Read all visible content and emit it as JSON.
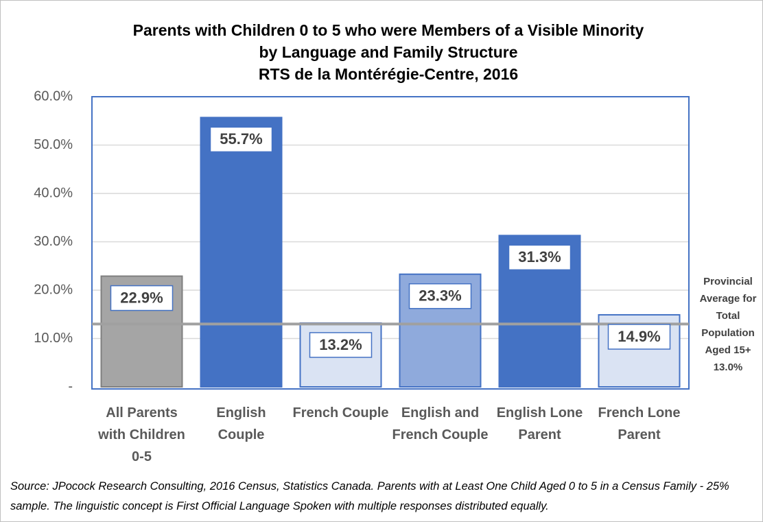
{
  "chart_data": {
    "type": "bar",
    "title": [
      "Parents with Children 0 to 5 who were Members of a Visible Minority",
      "by Language and Family Structure",
      "RTS de la Montérégie-Centre, 2016"
    ],
    "categories": [
      "All Parents with Children 0-5",
      "English Couple",
      "French Couple",
      "English and French Couple",
      "English Lone Parent",
      "French Lone Parent"
    ],
    "values": [
      22.9,
      55.7,
      13.2,
      23.3,
      31.3,
      14.9
    ],
    "value_labels": [
      "22.9%",
      "55.7%",
      "13.2%",
      "23.3%",
      "31.3%",
      "14.9%"
    ],
    "colors": [
      "#a5a5a5",
      "#4472c4",
      "#dae3f3",
      "#8faadc",
      "#4472c4",
      "#dae3f3"
    ],
    "ylim": [
      0,
      60
    ],
    "yticks": [
      {
        "value": 0,
        "label": "-"
      },
      {
        "value": 10,
        "label": "10.0%"
      },
      {
        "value": 20,
        "label": "20.0%"
      },
      {
        "value": 30,
        "label": "30.0%"
      },
      {
        "value": 40,
        "label": "40.0%"
      },
      {
        "value": 50,
        "label": "50.0%"
      },
      {
        "value": 60,
        "label": "60.0%"
      }
    ],
    "grid": true,
    "reference_line": {
      "text": "Provincial Average for Total Population Aged 15+",
      "value": 13.0,
      "value_label": "13.0%",
      "color": "#a0a0a0"
    },
    "source": "Source: JPocock Research Consulting, 2016 Census, Statistics Canada. Parents with at Least One Child Aged 0 to 5 in a Census Family - 25% sample. The linguistic concept is First Official Language Spoken with multiple responses distributed equally."
  }
}
